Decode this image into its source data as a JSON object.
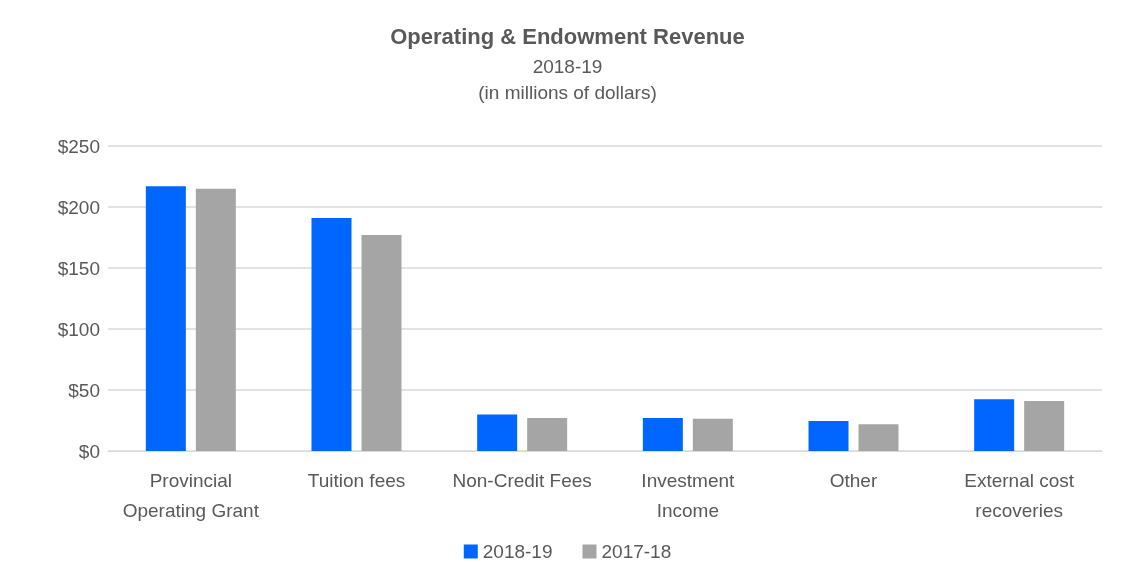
{
  "chart_data": {
    "type": "bar",
    "title": "Operating & Endowment Revenue",
    "subtitle": "2018-19\n(in millions of dollars)",
    "categories": [
      "Provincial\nOperating Grant",
      "Tuition fees",
      "Non-Credit Fees",
      "Investment\nIncome",
      "Other",
      "External cost\nrecoveries"
    ],
    "series": [
      {
        "name": "2018-19",
        "color": "#0066ff",
        "values": [
          217,
          191,
          30,
          27,
          24.5,
          42.5
        ]
      },
      {
        "name": "2017-18",
        "color": "#a5a5a5",
        "values": [
          215,
          177,
          27,
          26.5,
          22,
          41
        ]
      }
    ],
    "ylim": [
      0,
      250
    ],
    "yticks": [
      {
        "value": 0,
        "label": "$0"
      },
      {
        "value": 50,
        "label": "$50"
      },
      {
        "value": 100,
        "label": "$100"
      },
      {
        "value": 150,
        "label": "$150"
      },
      {
        "value": 200,
        "label": "$200"
      },
      {
        "value": 250,
        "label": "$250"
      }
    ],
    "grid": "y",
    "legend": "bottom"
  }
}
